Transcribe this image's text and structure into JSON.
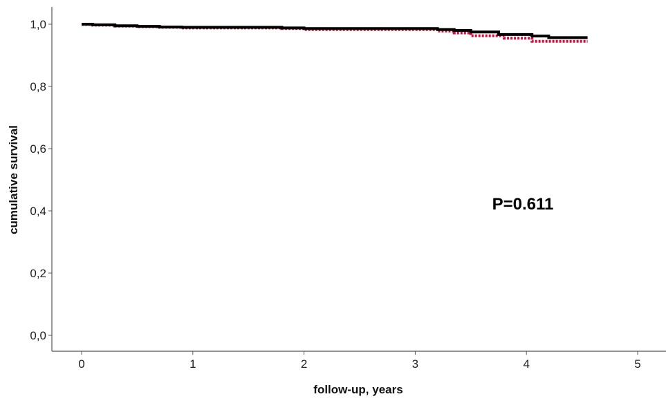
{
  "chart_data": {
    "type": "line",
    "title": "",
    "xlabel": "follow-up, years",
    "ylabel": "cumulative survival",
    "xlim": [
      0,
      5
    ],
    "ylim": [
      0,
      1.0
    ],
    "x_ticks": [
      "0",
      "1",
      "2",
      "3",
      "4",
      "5"
    ],
    "y_ticks": [
      "0,0",
      "0,2",
      "0,4",
      "0,6",
      "0,8",
      "1,0"
    ],
    "grid": false,
    "legend": "none",
    "annotation": "P=0.611",
    "series": [
      {
        "color": "#000000",
        "style": "solid",
        "points": [
          [
            0,
            1.0
          ],
          [
            0.1,
            0.998
          ],
          [
            0.3,
            0.995
          ],
          [
            0.5,
            0.993
          ],
          [
            0.7,
            0.991
          ],
          [
            0.9,
            0.99
          ],
          [
            1.6,
            0.99
          ],
          [
            1.8,
            0.988
          ],
          [
            2.0,
            0.986
          ],
          [
            3.1,
            0.986
          ],
          [
            3.2,
            0.983
          ],
          [
            3.35,
            0.98
          ],
          [
            3.5,
            0.975
          ],
          [
            3.75,
            0.967
          ],
          [
            4.05,
            0.962
          ],
          [
            4.2,
            0.957
          ],
          [
            4.55,
            0.957
          ]
        ]
      },
      {
        "color": "#d0103a",
        "style": "dotted",
        "points": [
          [
            0,
            0.999
          ],
          [
            0.1,
            0.997
          ],
          [
            0.3,
            0.994
          ],
          [
            0.5,
            0.992
          ],
          [
            0.7,
            0.99
          ],
          [
            0.9,
            0.988
          ],
          [
            1.6,
            0.988
          ],
          [
            1.8,
            0.986
          ],
          [
            2.0,
            0.983
          ],
          [
            3.1,
            0.983
          ],
          [
            3.2,
            0.978
          ],
          [
            3.35,
            0.972
          ],
          [
            3.5,
            0.963
          ],
          [
            3.8,
            0.955
          ],
          [
            4.05,
            0.945
          ],
          [
            4.55,
            0.945
          ]
        ]
      }
    ]
  }
}
